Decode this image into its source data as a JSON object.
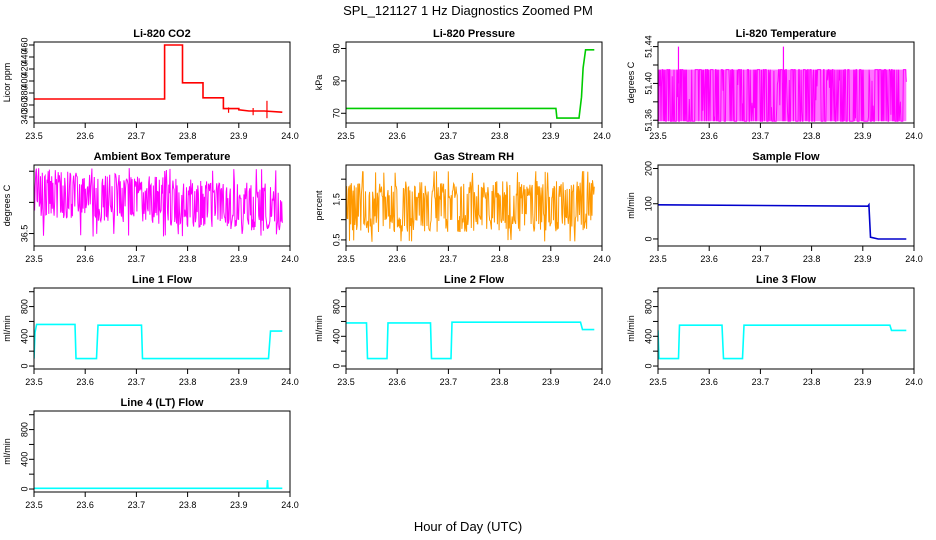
{
  "figure": {
    "title": "SPL_121127  1 Hz Diagnostics Zoomed PM",
    "xlabel": "Hour of Day (UTC)"
  },
  "chart_data": [
    {
      "type": "line",
      "title": "Li-820 CO2",
      "ylabel": "Licor ppm",
      "color": "#ff0000",
      "xlim": [
        23.5,
        24.0
      ],
      "ylim": [
        330,
        465
      ],
      "yticks": [
        340,
        360,
        380,
        400,
        420,
        440,
        460
      ],
      "xticks": [
        23.5,
        23.6,
        23.7,
        23.8,
        23.9,
        24.0
      ],
      "x": [
        23.5,
        23.755,
        23.755,
        23.79,
        23.79,
        23.83,
        23.83,
        23.87,
        23.87,
        23.9,
        23.9,
        23.92,
        23.95,
        23.985
      ],
      "y": [
        370,
        370,
        460,
        460,
        397,
        397,
        372,
        372,
        354,
        354,
        352,
        350,
        350,
        348
      ],
      "spikes": [
        {
          "x": 23.88,
          "lo": 347,
          "hi": 356
        },
        {
          "x": 23.928,
          "lo": 343,
          "hi": 355
        },
        {
          "x": 23.955,
          "lo": 338,
          "hi": 367
        }
      ]
    },
    {
      "type": "line",
      "title": "Li-820 Pressure",
      "ylabel": "kPa",
      "color": "#00cc00",
      "xlim": [
        23.5,
        24.0
      ],
      "ylim": [
        67,
        92
      ],
      "yticks": [
        70,
        80,
        90
      ],
      "xticks": [
        23.5,
        23.6,
        23.7,
        23.8,
        23.9,
        24.0
      ],
      "x": [
        23.5,
        23.91,
        23.912,
        23.955,
        23.96,
        23.963,
        23.968,
        23.975,
        23.985
      ],
      "y": [
        71.5,
        71.5,
        68.5,
        68.5,
        75,
        84,
        89.6,
        89.6,
        89.6
      ]
    },
    {
      "type": "noise",
      "title": "Li-820 Temperature",
      "ylabel": "degrees C",
      "color": "#ff00ff",
      "xlim": [
        23.5,
        24.0
      ],
      "ylim": [
        51.357,
        51.445
      ],
      "yticks": [
        51.36,
        51.38,
        51.4,
        51.42,
        51.44
      ],
      "yticklabels": [
        "51.36",
        "",
        "51.40",
        "",
        "51.44"
      ],
      "xticks": [
        23.5,
        23.6,
        23.7,
        23.8,
        23.9,
        24.0
      ],
      "lo": 51.359,
      "hi": 51.415,
      "xrange": [
        23.5,
        23.985
      ],
      "mode": "band",
      "spikes": [
        {
          "x": 23.54,
          "lo": 51.4,
          "hi": 51.44
        },
        {
          "x": 23.745,
          "lo": 51.4,
          "hi": 51.44
        }
      ]
    },
    {
      "type": "noise",
      "title": "Ambient Box Temperature",
      "ylabel": "degrees C",
      "color": "#ff00ff",
      "xlim": [
        23.5,
        24.0
      ],
      "ylim": [
        36.3,
        37.6
      ],
      "yticks": [
        36.5,
        37.0,
        37.5
      ],
      "yticklabels": [
        "36.5",
        "",
        ""
      ],
      "xticks": [
        23.5,
        23.6,
        23.7,
        23.8,
        23.9,
        24.0
      ],
      "lo": 36.45,
      "hi": 37.55,
      "xrange": [
        23.5,
        23.985
      ],
      "mode": "drift",
      "center": [
        37.15,
        36.9
      ],
      "amp": 0.28
    },
    {
      "type": "noise",
      "title": "Gas Stream RH",
      "ylabel": "percent",
      "color": "#ff9900",
      "xlim": [
        23.5,
        24.0
      ],
      "ylim": [
        0.35,
        2.35
      ],
      "yticks": [
        0.5,
        1.0,
        1.5,
        2.0
      ],
      "yticklabels": [
        "0.5",
        "",
        "1.5",
        ""
      ],
      "xticks": [
        23.5,
        23.6,
        23.7,
        23.8,
        23.9,
        24.0
      ],
      "lo": 0.45,
      "hi": 2.2,
      "xrange": [
        23.5,
        23.985
      ],
      "mode": "drift",
      "center": [
        1.3,
        1.35
      ],
      "amp": 0.45
    },
    {
      "type": "line",
      "title": "Sample Flow",
      "ylabel": "ml/min",
      "color": "#0000cc",
      "xlim": [
        23.5,
        24.0
      ],
      "ylim": [
        -20,
        210
      ],
      "yticks": [
        0,
        100,
        200
      ],
      "xticks": [
        23.5,
        23.6,
        23.7,
        23.8,
        23.9,
        24.0
      ],
      "x": [
        23.5,
        23.91,
        23.912,
        23.915,
        23.93,
        23.985
      ],
      "y": [
        97,
        93,
        97,
        5,
        0,
        0
      ]
    },
    {
      "type": "line",
      "title": "Line 1 Flow",
      "ylabel": "ml/min",
      "color": "#00ffff",
      "xlim": [
        23.5,
        24.0
      ],
      "ylim": [
        -40,
        1050
      ],
      "yticks": [
        0,
        200,
        400,
        600,
        800,
        1000
      ],
      "yticklabels": [
        "0",
        "",
        "400",
        "",
        "800",
        ""
      ],
      "xticks": [
        23.5,
        23.6,
        23.7,
        23.8,
        23.9,
        24.0
      ],
      "x": [
        23.5,
        23.502,
        23.505,
        23.58,
        23.582,
        23.622,
        23.625,
        23.71,
        23.712,
        23.958,
        23.962,
        23.985
      ],
      "y": [
        100,
        450,
        560,
        560,
        100,
        100,
        550,
        550,
        100,
        100,
        470,
        470
      ]
    },
    {
      "type": "line",
      "title": "Line 2 Flow",
      "ylabel": "ml/min",
      "color": "#00ffff",
      "xlim": [
        23.5,
        24.0
      ],
      "ylim": [
        -40,
        1050
      ],
      "yticks": [
        0,
        200,
        400,
        600,
        800,
        1000
      ],
      "yticklabels": [
        "0",
        "",
        "400",
        "",
        "800",
        ""
      ],
      "xticks": [
        23.5,
        23.6,
        23.7,
        23.8,
        23.9,
        24.0
      ],
      "x": [
        23.5,
        23.54,
        23.542,
        23.58,
        23.582,
        23.665,
        23.667,
        23.705,
        23.707,
        23.958,
        23.962,
        23.985
      ],
      "y": [
        580,
        580,
        100,
        100,
        580,
        580,
        100,
        100,
        590,
        590,
        490,
        490
      ]
    },
    {
      "type": "line",
      "title": "Line 3 Flow",
      "ylabel": "ml/min",
      "color": "#00ffff",
      "xlim": [
        23.5,
        24.0
      ],
      "ylim": [
        -40,
        1050
      ],
      "yticks": [
        0,
        200,
        400,
        600,
        800,
        1000
      ],
      "yticklabels": [
        "0",
        "",
        "400",
        "",
        "800",
        ""
      ],
      "xticks": [
        23.5,
        23.6,
        23.7,
        23.8,
        23.9,
        24.0
      ],
      "x": [
        23.5,
        23.502,
        23.504,
        23.54,
        23.542,
        23.625,
        23.628,
        23.665,
        23.668,
        23.953,
        23.956,
        23.985
      ],
      "y": [
        480,
        100,
        100,
        100,
        550,
        550,
        100,
        100,
        550,
        550,
        480,
        480
      ]
    },
    {
      "type": "line",
      "title": "Line 4 (LT) Flow",
      "ylabel": "ml/min",
      "color": "#00ffff",
      "xlim": [
        23.5,
        24.0
      ],
      "ylim": [
        -40,
        1050
      ],
      "yticks": [
        0,
        200,
        400,
        600,
        800,
        1000
      ],
      "yticklabels": [
        "0",
        "",
        "400",
        "",
        "800",
        ""
      ],
      "xticks": [
        23.5,
        23.6,
        23.7,
        23.8,
        23.9,
        24.0
      ],
      "x": [
        23.5,
        23.955,
        23.956,
        23.957,
        23.985
      ],
      "y": [
        10,
        10,
        120,
        10,
        10
      ]
    }
  ]
}
